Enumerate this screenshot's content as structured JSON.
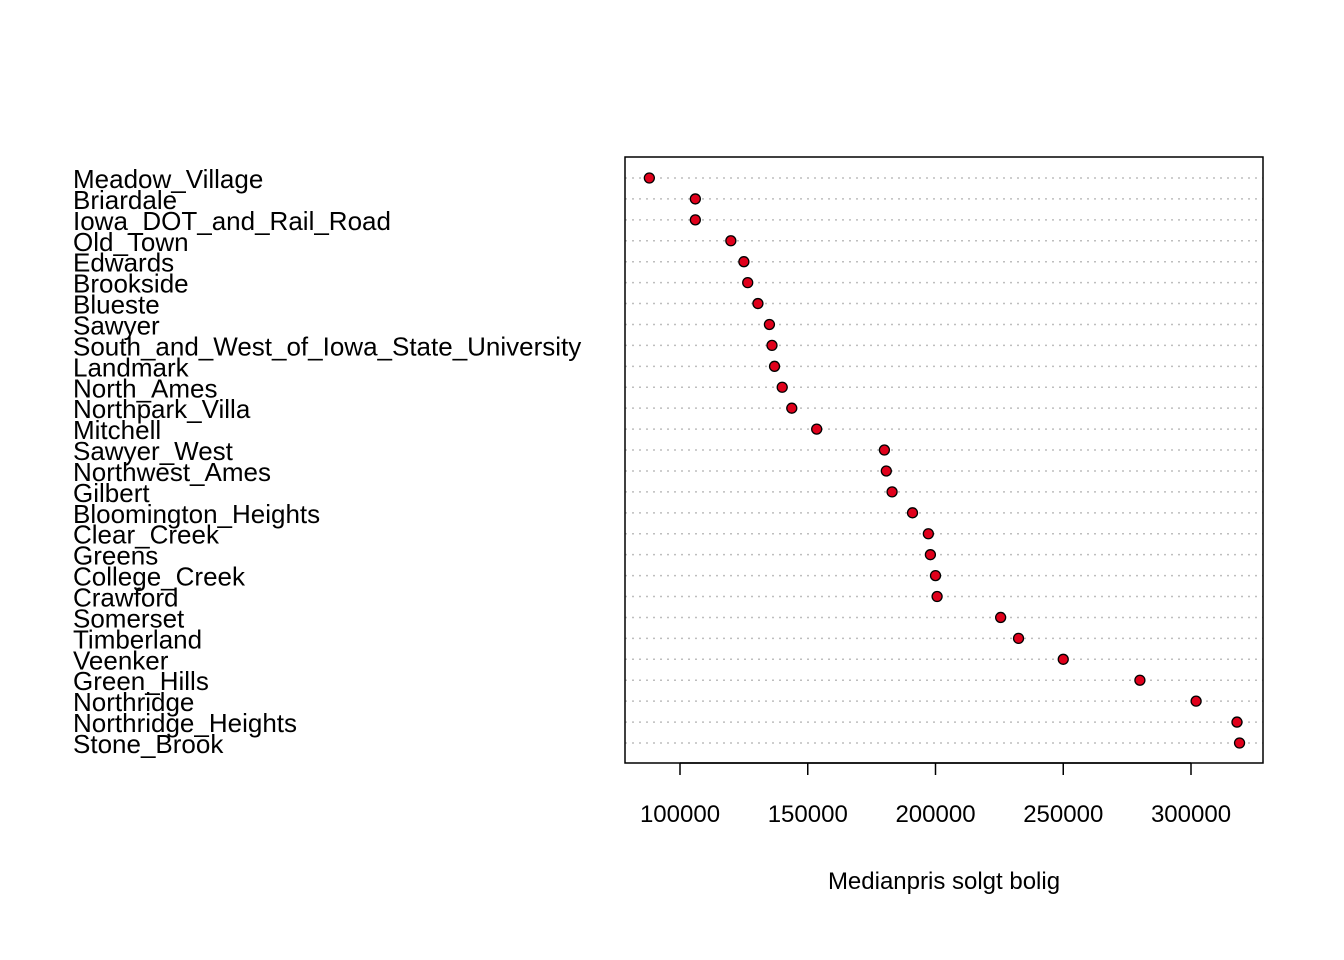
{
  "chart_data": {
    "type": "scatter",
    "subtype": "dotchart",
    "title": "",
    "xlabel": "Medianpris solgt bolig",
    "ylabel": "",
    "xticks": [
      100000,
      150000,
      200000,
      250000,
      300000
    ],
    "xlim": [
      79000,
      329000
    ],
    "grid": "dotted horizontal guide per category",
    "point_color": "#e0001b",
    "categories": [
      "Meadow_Village",
      "Briardale",
      "Iowa_DOT_and_Rail_Road",
      "Old_Town",
      "Edwards",
      "Brookside",
      "Blueste",
      "Sawyer",
      "South_and_West_of_Iowa_State_University",
      "Landmark",
      "North_Ames",
      "Northpark_Villa",
      "Mitchell",
      "Sawyer_West",
      "Northwest_Ames",
      "Gilbert",
      "Bloomington_Heights",
      "Clear_Creek",
      "Greens",
      "College_Creek",
      "Crawford",
      "Somerset",
      "Timberland",
      "Veenker",
      "Green_Hills",
      "Northridge",
      "Northridge_Heights",
      "Stone_Brook"
    ],
    "values": [
      88000,
      106000,
      106000,
      119900,
      125000,
      126500,
      130500,
      135000,
      136000,
      137000,
      140000,
      143750,
      153500,
      180000,
      180750,
      183000,
      191000,
      197200,
      198000,
      200000,
      200624,
      225500,
      232500,
      250000,
      280000,
      302000,
      318000,
      319000
    ]
  }
}
